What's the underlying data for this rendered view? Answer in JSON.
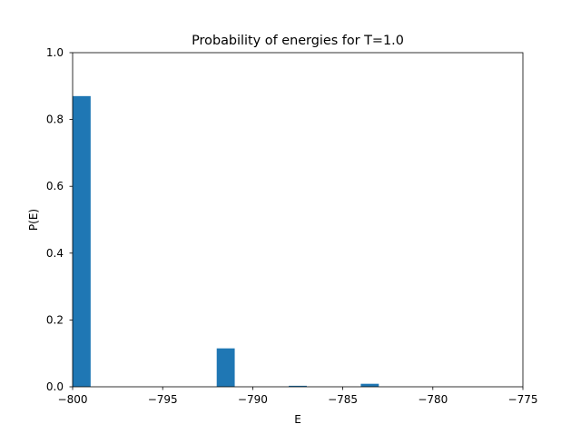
{
  "chart_data": {
    "type": "bar",
    "title": "Probability of energies for T=1.0",
    "xlabel": "E",
    "ylabel": "P(E)",
    "xlim": [
      -800,
      -775
    ],
    "ylim": [
      0,
      1.0
    ],
    "bar_width": 1,
    "x_ticks": [
      -800,
      -795,
      -790,
      -785,
      -780,
      -775
    ],
    "x_tick_labels": [
      "−800",
      "−795",
      "−790",
      "−785",
      "−780",
      "−775"
    ],
    "y_ticks": [
      0.0,
      0.2,
      0.4,
      0.6,
      0.8,
      1.0
    ],
    "y_tick_labels": [
      "0.0",
      "0.2",
      "0.4",
      "0.6",
      "0.8",
      "1.0"
    ],
    "bars": [
      {
        "x_start": -800,
        "x_end": -799,
        "value": 0.87
      },
      {
        "x_start": -792,
        "x_end": -791,
        "value": 0.115
      },
      {
        "x_start": -788,
        "x_end": -787,
        "value": 0.003
      },
      {
        "x_start": -784,
        "x_end": -783,
        "value": 0.009
      }
    ],
    "bar_color": "#1f77b4",
    "grid": false,
    "legend": "none"
  }
}
